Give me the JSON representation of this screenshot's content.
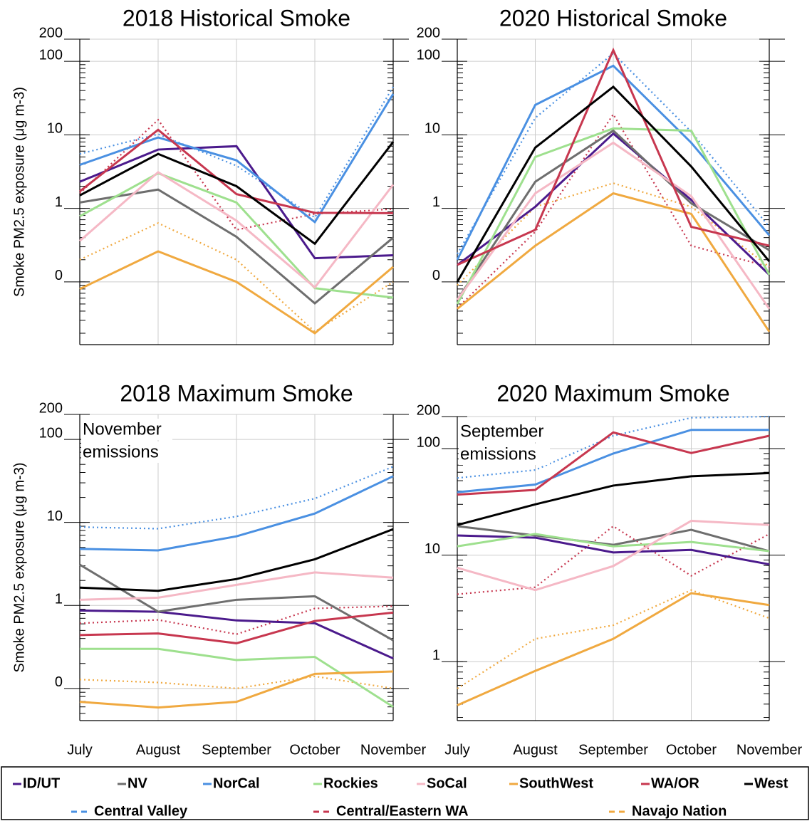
{
  "chart_data": [
    {
      "type": "line",
      "title": "2018 Historical Smoke",
      "ylabel": "Smoke PM2.5 exposure (μg m-3)",
      "log_y": true,
      "grid": true,
      "categories": [
        "July",
        "August",
        "September",
        "October",
        "November"
      ],
      "ylim": [
        0.014,
        200
      ],
      "yticks": [
        {
          "value": 0.1,
          "label": "0"
        },
        1,
        10,
        100,
        200
      ],
      "series": [
        {
          "name": "ID/UT",
          "color": "#4b1a8c",
          "style": "solid",
          "values": [
            2.3,
            6.3,
            7,
            0.21,
            0.23
          ]
        },
        {
          "name": "NV",
          "color": "#6e6e6e",
          "style": "solid",
          "values": [
            1.2,
            1.8,
            0.41,
            0.051,
            0.4
          ]
        },
        {
          "name": "NorCal",
          "color": "#4a90e2",
          "style": "solid",
          "values": [
            3.9,
            9.2,
            4.5,
            0.65,
            36
          ]
        },
        {
          "name": "Rockies",
          "color": "#9ee08e",
          "style": "solid",
          "values": [
            0.78,
            3,
            1.2,
            0.082,
            0.061
          ]
        },
        {
          "name": "SoCal",
          "color": "#f5b8c5",
          "style": "solid",
          "values": [
            0.36,
            3.1,
            0.68,
            0.084,
            2.1
          ]
        },
        {
          "name": "SouthWest",
          "color": "#f0a940",
          "style": "solid",
          "values": [
            0.08,
            0.26,
            0.1,
            0.02,
            0.16
          ]
        },
        {
          "name": "WA/OR",
          "color": "#c7374f",
          "style": "solid",
          "values": [
            1.7,
            11.7,
            1.56,
            0.87,
            0.86
          ]
        },
        {
          "name": "West",
          "color": "#000000",
          "style": "solid",
          "values": [
            1.5,
            5.5,
            2.0,
            0.33,
            8
          ]
        },
        {
          "name": "Central Valley",
          "color": "#4a90e2",
          "style": "dotted",
          "values": [
            5.5,
            10.2,
            3.8,
            0.75,
            45
          ]
        },
        {
          "name": "Central/Eastern WA",
          "color": "#c7374f",
          "style": "dotted",
          "values": [
            1.6,
            16,
            0.51,
            0.84,
            0.98
          ]
        },
        {
          "name": "Navajo Nation",
          "color": "#f0a940",
          "style": "dotted",
          "values": [
            0.2,
            0.63,
            0.2,
            0.021,
            0.1
          ]
        }
      ]
    },
    {
      "type": "line",
      "title": "2020 Historical Smoke",
      "log_y": true,
      "grid": true,
      "categories": [
        "July",
        "August",
        "September",
        "October",
        "November"
      ],
      "ylim": [
        0.014,
        200
      ],
      "yticks": [
        {
          "value": 0.1,
          "label": "0"
        },
        1,
        10,
        100,
        200
      ],
      "series": [
        {
          "name": "ID/UT",
          "color": "#4b1a8c",
          "style": "solid",
          "values": [
            0.17,
            1.05,
            10.4,
            1.3,
            0.125
          ]
        },
        {
          "name": "NV",
          "color": "#6e6e6e",
          "style": "solid",
          "values": [
            0.057,
            2.3,
            11.4,
            1.17,
            0.27
          ]
        },
        {
          "name": "NorCal",
          "color": "#4a90e2",
          "style": "solid",
          "values": [
            0.2,
            25.5,
            87,
            7.8,
            0.43
          ]
        },
        {
          "name": "Rockies",
          "color": "#9ee08e",
          "style": "solid",
          "values": [
            0.05,
            5,
            12.2,
            11.4,
            0.125
          ]
        },
        {
          "name": "SoCal",
          "color": "#f5b8c5",
          "style": "solid",
          "values": [
            0.057,
            1.6,
            7.8,
            1.46,
            0.043
          ]
        },
        {
          "name": "SouthWest",
          "color": "#f0a940",
          "style": "solid",
          "values": [
            0.043,
            0.31,
            1.6,
            0.84,
            0.021
          ]
        },
        {
          "name": "WA/OR",
          "color": "#c7374f",
          "style": "solid",
          "values": [
            0.17,
            0.51,
            142,
            0.56,
            0.31
          ]
        },
        {
          "name": "West",
          "color": "#000000",
          "style": "solid",
          "values": [
            0.1,
            6.7,
            45,
            3.7,
            0.19
          ]
        },
        {
          "name": "Central Valley",
          "color": "#4a90e2",
          "style": "dotted",
          "values": [
            0.24,
            17,
            128,
            11,
            0.56
          ]
        },
        {
          "name": "Central/Eastern WA",
          "color": "#c7374f",
          "style": "dotted",
          "values": [
            0.044,
            0.48,
            19,
            0.31,
            0.16
          ]
        },
        {
          "name": "Navajo Nation",
          "color": "#f0a940",
          "style": "dotted",
          "values": [
            0.09,
            1.05,
            2.2,
            1.05,
            0.16
          ]
        }
      ]
    },
    {
      "type": "line",
      "title": "2018 Maximum Smoke",
      "ylabel": "Smoke PM2.5 exposure (μg m-3)",
      "annotation": [
        "November",
        "emissions"
      ],
      "log_y": true,
      "grid": true,
      "categories": [
        "July",
        "August",
        "September",
        "October",
        "November"
      ],
      "ylim": [
        0.041,
        200
      ],
      "yticks": [
        {
          "value": 0.1,
          "label": "0"
        },
        1,
        10,
        100,
        200
      ],
      "series": [
        {
          "name": "ID/UT",
          "color": "#4b1a8c",
          "style": "solid",
          "values": [
            0.87,
            0.84,
            0.66,
            0.61,
            0.23
          ]
        },
        {
          "name": "NV",
          "color": "#6e6e6e",
          "style": "solid",
          "values": [
            3.1,
            0.84,
            1.17,
            1.29,
            0.38
          ]
        },
        {
          "name": "NorCal",
          "color": "#4a90e2",
          "style": "solid",
          "values": [
            4.8,
            4.6,
            6.8,
            12.8,
            36
          ]
        },
        {
          "name": "Rockies",
          "color": "#9ee08e",
          "style": "solid",
          "values": [
            0.3,
            0.3,
            0.22,
            0.24,
            0.06
          ]
        },
        {
          "name": "SoCal",
          "color": "#f5b8c5",
          "style": "solid",
          "values": [
            1.17,
            1.24,
            1.77,
            2.5,
            2.16
          ]
        },
        {
          "name": "SouthWest",
          "color": "#f0a940",
          "style": "solid",
          "values": [
            0.069,
            0.059,
            0.069,
            0.15,
            0.16
          ]
        },
        {
          "name": "WA/OR",
          "color": "#c7374f",
          "style": "solid",
          "values": [
            0.44,
            0.46,
            0.35,
            0.65,
            0.82
          ]
        },
        {
          "name": "West",
          "color": "#000000",
          "style": "solid",
          "values": [
            1.64,
            1.5,
            2.08,
            3.6,
            8.3
          ]
        },
        {
          "name": "Central Valley",
          "color": "#4a90e2",
          "style": "dotted",
          "values": [
            8.8,
            8.4,
            11.8,
            19.4,
            47
          ]
        },
        {
          "name": "Central/Eastern WA",
          "color": "#c7374f",
          "style": "dotted",
          "values": [
            0.61,
            0.67,
            0.45,
            0.92,
            0.98
          ]
        },
        {
          "name": "Navajo Nation",
          "color": "#f0a940",
          "style": "dotted",
          "values": [
            0.128,
            0.118,
            0.1,
            0.14,
            0.1
          ]
        }
      ]
    },
    {
      "type": "line",
      "title": "2020 Maximum Smoke",
      "annotation": [
        "September",
        "emissions"
      ],
      "log_y": true,
      "grid": true,
      "categories": [
        "July",
        "August",
        "September",
        "October",
        "November"
      ],
      "ylim": [
        0.28,
        200
      ],
      "yticks": [
        1,
        10,
        100,
        200
      ],
      "series": [
        {
          "name": "ID/UT",
          "color": "#4b1a8c",
          "style": "solid",
          "values": [
            15.3,
            14.6,
            10.6,
            11.2,
            8.2
          ]
        },
        {
          "name": "NV",
          "color": "#6e6e6e",
          "style": "solid",
          "values": [
            18.7,
            15.3,
            12.5,
            17.3,
            10.9
          ]
        },
        {
          "name": "NorCal",
          "color": "#4a90e2",
          "style": "solid",
          "values": [
            39,
            46,
            90,
            150,
            150
          ]
        },
        {
          "name": "Rockies",
          "color": "#9ee08e",
          "style": "solid",
          "values": [
            12.1,
            15.8,
            12.1,
            13.3,
            10.9
          ]
        },
        {
          "name": "SoCal",
          "color": "#f5b8c5",
          "style": "solid",
          "values": [
            7.6,
            4.7,
            7.9,
            21,
            19.2
          ]
        },
        {
          "name": "SouthWest",
          "color": "#f0a940",
          "style": "solid",
          "values": [
            0.39,
            0.82,
            1.64,
            4.4,
            3.4
          ]
        },
        {
          "name": "WA/OR",
          "color": "#c7374f",
          "style": "solid",
          "values": [
            37,
            41,
            142,
            91,
            132
          ]
        },
        {
          "name": "West",
          "color": "#000000",
          "style": "solid",
          "values": [
            19.2,
            30,
            45,
            55,
            59
          ]
        },
        {
          "name": "Central Valley",
          "color": "#4a90e2",
          "style": "dotted",
          "values": [
            53,
            63,
            132,
            195,
            200
          ]
        },
        {
          "name": "Central/Eastern WA",
          "color": "#c7374f",
          "style": "dotted",
          "values": [
            4.3,
            5.0,
            18.7,
            6.4,
            15.8
          ]
        },
        {
          "name": "Navajo Nation",
          "color": "#f0a940",
          "style": "dotted",
          "values": [
            0.56,
            1.64,
            2.2,
            4.7,
            2.56
          ]
        }
      ]
    }
  ]
}
